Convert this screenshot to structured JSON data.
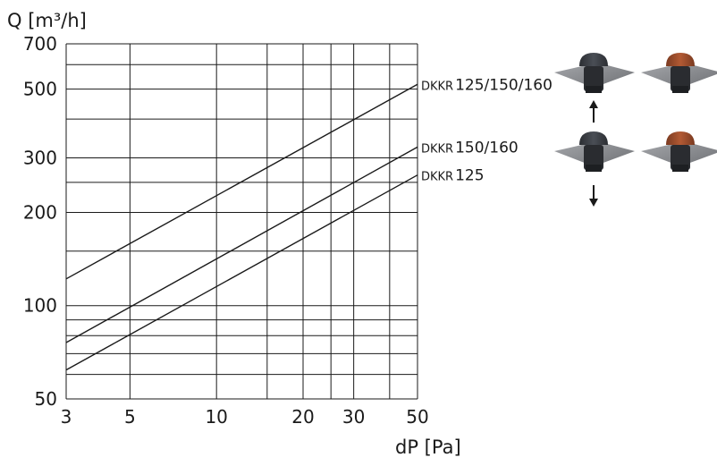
{
  "colors": {
    "grid": "#1a1a1a",
    "line": "#1a1a1a",
    "cap_dark": "#3a3d42",
    "cap_brown": "#9c4a2a",
    "flashing": "#8a8c90"
  },
  "icons": {
    "airflow_up": "arrow-up-icon",
    "airflow_down": "arrow-down-icon",
    "roof_vent_dark": "roof-vent-dark-icon",
    "roof_vent_brown": "roof-vent-brown-icon"
  },
  "chart_data": {
    "type": "line",
    "scale": "log-log",
    "grid": true,
    "xlabel": "dP [Pa]",
    "ylabel": "Q [m³/h]",
    "xlim": [
      3,
      50
    ],
    "ylim": [
      50,
      700
    ],
    "x_ticks": [
      3,
      5,
      10,
      20,
      30,
      50
    ],
    "y_ticks": [
      50,
      100,
      200,
      300,
      500,
      700
    ],
    "x_grid": [
      3,
      5,
      10,
      15,
      20,
      25,
      30,
      40,
      50
    ],
    "y_grid": [
      50,
      60,
      70,
      80,
      90,
      100,
      150,
      200,
      250,
      300,
      400,
      500,
      600,
      700
    ],
    "series": [
      {
        "name": "DKKR 125/150/160",
        "label_prefix": "DKKR",
        "label_main": "125/150/160",
        "points": [
          [
            3,
            122
          ],
          [
            50,
            518
          ]
        ]
      },
      {
        "name": "DKKR 150/160",
        "label_prefix": "DKKR",
        "label_main": "150/160",
        "points": [
          [
            3,
            76
          ],
          [
            50,
            325
          ]
        ]
      },
      {
        "name": "DKKR 125",
        "label_prefix": "DKKR",
        "label_main": "125",
        "points": [
          [
            3,
            62
          ],
          [
            50,
            264
          ]
        ]
      }
    ]
  }
}
